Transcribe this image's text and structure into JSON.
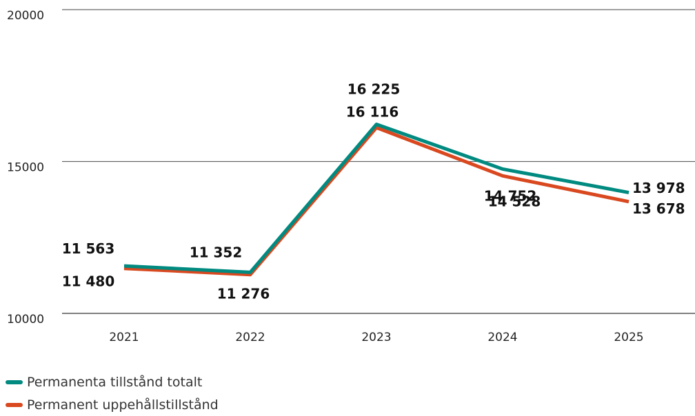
{
  "chart_data": {
    "type": "line",
    "title": "",
    "xlabel": "",
    "ylabel": "",
    "categories": [
      "2021",
      "2022",
      "2023",
      "2024",
      "2025"
    ],
    "ylim": [
      10000,
      20000
    ],
    "yticks": [
      10000,
      15000,
      20000
    ],
    "ytick_labels": [
      "10000",
      "15000",
      "20000"
    ],
    "grid": true,
    "legend_position": "bottom-left",
    "series": [
      {
        "name": "Permanenta tillstånd totalt",
        "color": "#008a80",
        "values": [
          11563,
          11352,
          16225,
          14752,
          13978
        ],
        "labels": [
          "11 563",
          "11 352",
          "16 225",
          "14 752",
          "13 978"
        ]
      },
      {
        "name": "Permanent uppehållstillstånd",
        "color": "#d9481f",
        "values": [
          11480,
          11276,
          16116,
          14528,
          13678
        ],
        "labels": [
          "11 480",
          "11 276",
          "16 116",
          "14 528",
          "13 678"
        ]
      }
    ]
  }
}
